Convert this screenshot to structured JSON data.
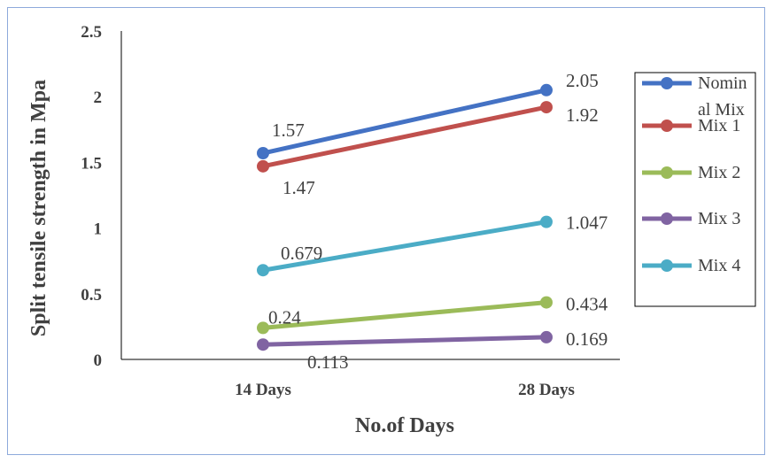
{
  "chart_data": {
    "type": "line",
    "categories": [
      "14 Days",
      "28 Days"
    ],
    "xlabel": "No.of Days",
    "ylabel": "Split tensile strength in Mpa",
    "ylim": [
      0,
      2.5
    ],
    "yticks": [
      "0",
      "0.5",
      "1",
      "1.5",
      "2",
      "2.5"
    ],
    "grid": false,
    "legend": "right",
    "series": [
      {
        "name": "Nominal Mix",
        "legend_lines": [
          "Nomin",
          "al Mix"
        ],
        "color": "#4472C4",
        "values": [
          1.57,
          2.05
        ],
        "labels": [
          "1.57",
          "2.05"
        ]
      },
      {
        "name": "Mix 1",
        "legend_lines": [
          "Mix 1"
        ],
        "color": "#C0504D",
        "values": [
          1.47,
          1.92
        ],
        "labels": [
          "1.47",
          "1.92"
        ]
      },
      {
        "name": "Mix 2",
        "legend_lines": [
          "Mix 2"
        ],
        "color": "#9BBB59",
        "values": [
          0.24,
          0.434
        ],
        "labels": [
          "0.24",
          "0.434"
        ]
      },
      {
        "name": "Mix 3",
        "legend_lines": [
          "Mix 3"
        ],
        "color": "#8064A2",
        "values": [
          0.113,
          0.169
        ],
        "labels": [
          "0.113",
          "0.169"
        ]
      },
      {
        "name": "Mix 4",
        "legend_lines": [
          "Mix 4"
        ],
        "color": "#4BACC6",
        "values": [
          0.679,
          1.047
        ],
        "labels": [
          "0.679",
          "1.047"
        ]
      }
    ]
  }
}
